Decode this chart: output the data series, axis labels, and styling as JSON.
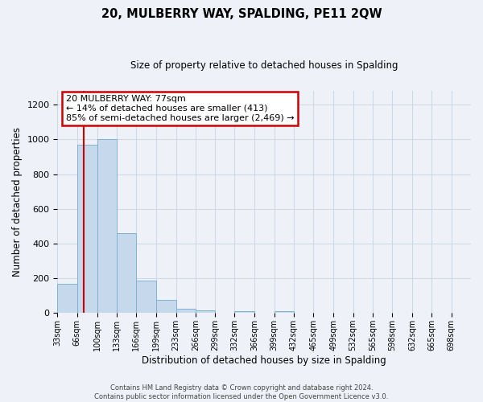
{
  "title": "20, MULBERRY WAY, SPALDING, PE11 2QW",
  "subtitle": "Size of property relative to detached houses in Spalding",
  "xlabel": "Distribution of detached houses by size in Spalding",
  "ylabel": "Number of detached properties",
  "bar_color": "#c6d9ec",
  "bar_edge_color": "#7fb3d3",
  "bin_edges": [
    33,
    66,
    100,
    133,
    166,
    199,
    233,
    266,
    299,
    332,
    366,
    399,
    432,
    465,
    499,
    532,
    565,
    598,
    632,
    665,
    698,
    731
  ],
  "bar_heights": [
    170,
    970,
    1000,
    460,
    185,
    75,
    25,
    15,
    0,
    10,
    0,
    10,
    0,
    0,
    0,
    0,
    0,
    0,
    0,
    0,
    0
  ],
  "ylim": [
    0,
    1280
  ],
  "yticks": [
    0,
    200,
    400,
    600,
    800,
    1000,
    1200
  ],
  "xlim_min": 33,
  "xlim_max": 731,
  "property_size": 77,
  "red_line_color": "#cc0000",
  "annotation_title": "20 MULBERRY WAY: 77sqm",
  "annotation_line1": "← 14% of detached houses are smaller (413)",
  "annotation_line2": "85% of semi-detached houses are larger (2,469) →",
  "annotation_box_color": "#ffffff",
  "annotation_box_edge": "#cc0000",
  "footer1": "Contains HM Land Registry data © Crown copyright and database right 2024.",
  "footer2": "Contains public sector information licensed under the Open Government Licence v3.0.",
  "grid_color": "#d0d8e8",
  "bg_color": "#eef2f8"
}
